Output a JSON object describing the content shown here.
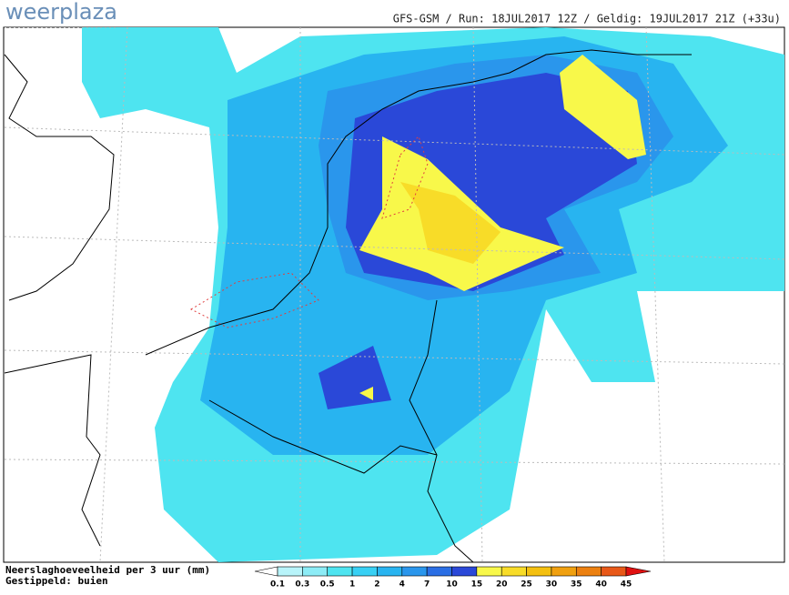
{
  "header": {
    "logo": "weerplaza",
    "info": "GFS-GSM / Run: 18JUL2017 12Z / Geldig: 19JUL2017 21Z (+33u)"
  },
  "legend": {
    "title": "Neerslaghoeveelheid per 3 uur (mm)",
    "subtitle": "Gestippeld: buien",
    "labels": [
      "0.1",
      "0.3",
      "0.5",
      "1",
      "2",
      "4",
      "7",
      "10",
      "15",
      "20",
      "25",
      "30",
      "35",
      "40",
      "45"
    ],
    "colors": [
      "#ffffff",
      "#b8f4fa",
      "#8cecf6",
      "#4ee4f0",
      "#38d0f4",
      "#28b4f0",
      "#2a96ec",
      "#2a6ee4",
      "#2a48d8",
      "#f8f84a",
      "#f8dc28",
      "#f4c010",
      "#f0a010",
      "#ec8010",
      "#e85818",
      "#e01010"
    ]
  }
}
